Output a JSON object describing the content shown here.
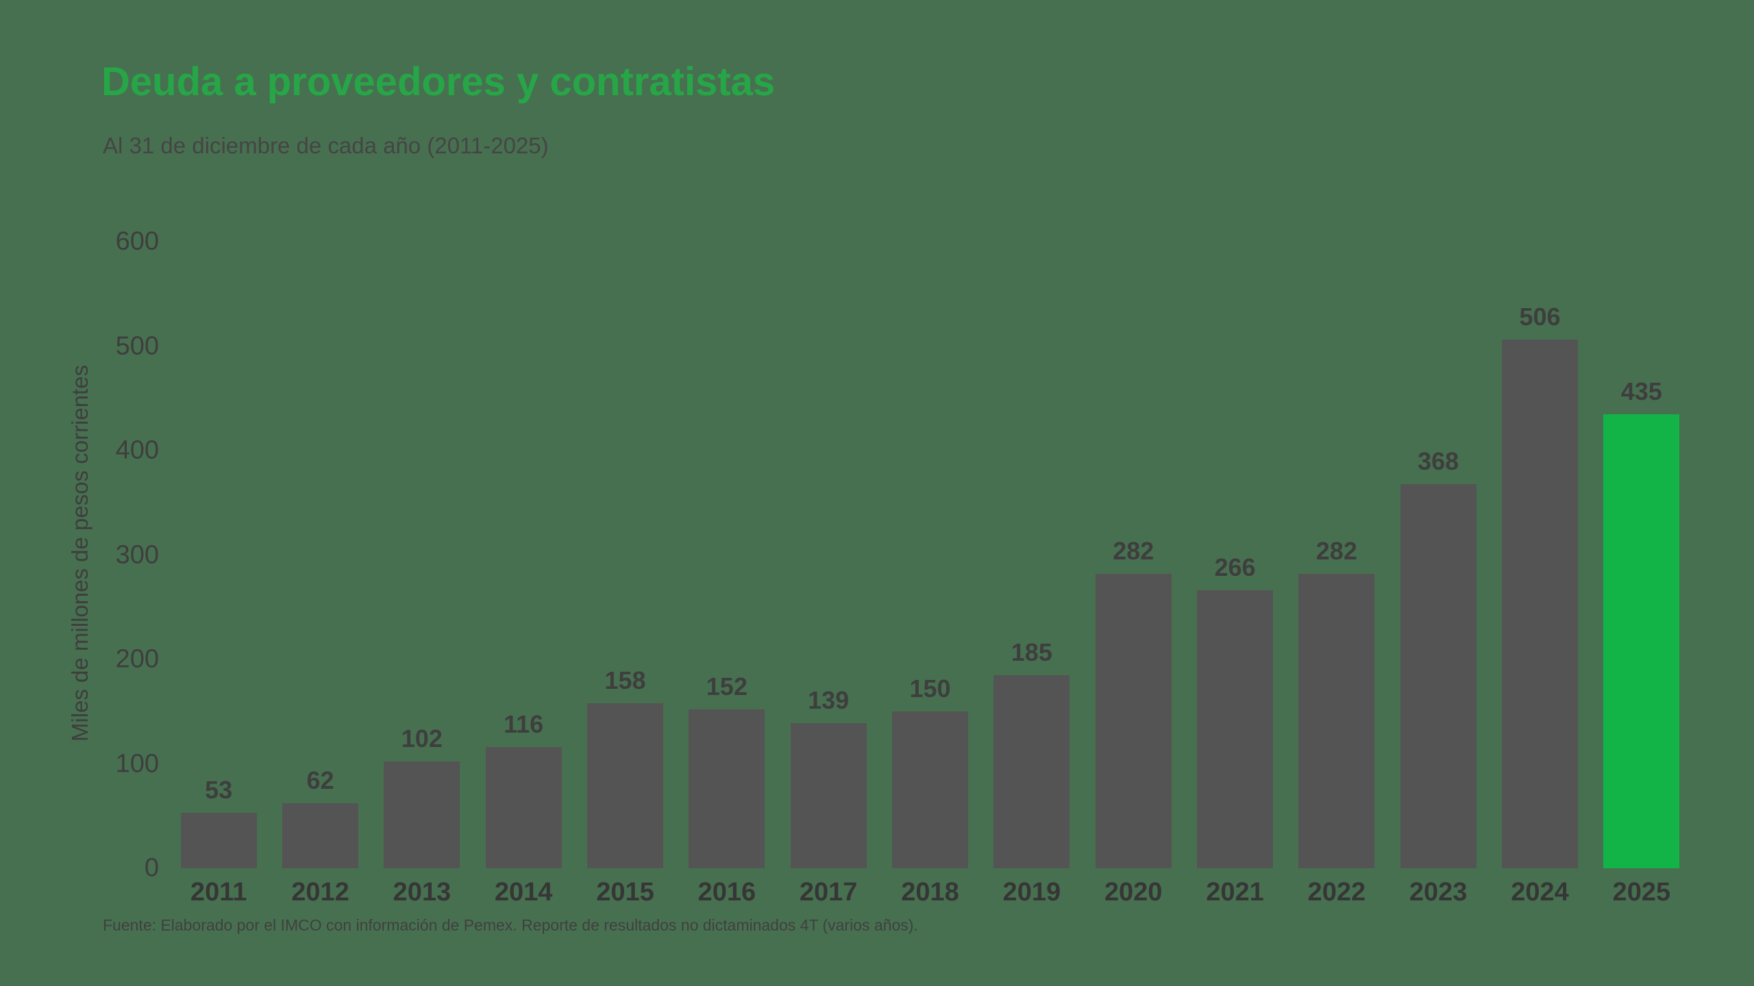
{
  "header": {
    "title": "Deuda a proveedores y contratistas",
    "subtitle": "Al 31 de diciembre de cada año (2011-2025)"
  },
  "footer": {
    "source": "Fuente: Elaborado por el IMCO con información de Pemex. Reporte de resultados no dictaminados 4T (varios años)."
  },
  "colors": {
    "background": "#477050",
    "title_green": "#27A648",
    "bar_gray": "#545454",
    "bar_highlight_green": "#12B347",
    "label_text": "#3E3E3E"
  },
  "chart_data": {
    "type": "bar",
    "title": "Deuda a proveedores y contratistas",
    "subtitle": "Al 31 de diciembre de cada año (2011-2025)",
    "xlabel": "",
    "ylabel": "Miles de millones de pesos corrientes",
    "categories": [
      "2011",
      "2012",
      "2013",
      "2014",
      "2015",
      "2016",
      "2017",
      "2018",
      "2019",
      "2020",
      "2021",
      "2022",
      "2023",
      "2024",
      "2025"
    ],
    "values": [
      53,
      62,
      102,
      116,
      158,
      152,
      139,
      150,
      185,
      282,
      266,
      282,
      368,
      506,
      435
    ],
    "ylim": [
      0,
      600
    ],
    "yticks": [
      0,
      100,
      200,
      300,
      400,
      500,
      600
    ],
    "grid": false,
    "legend_position": "none",
    "value_labels": true,
    "highlight_index": 14
  }
}
